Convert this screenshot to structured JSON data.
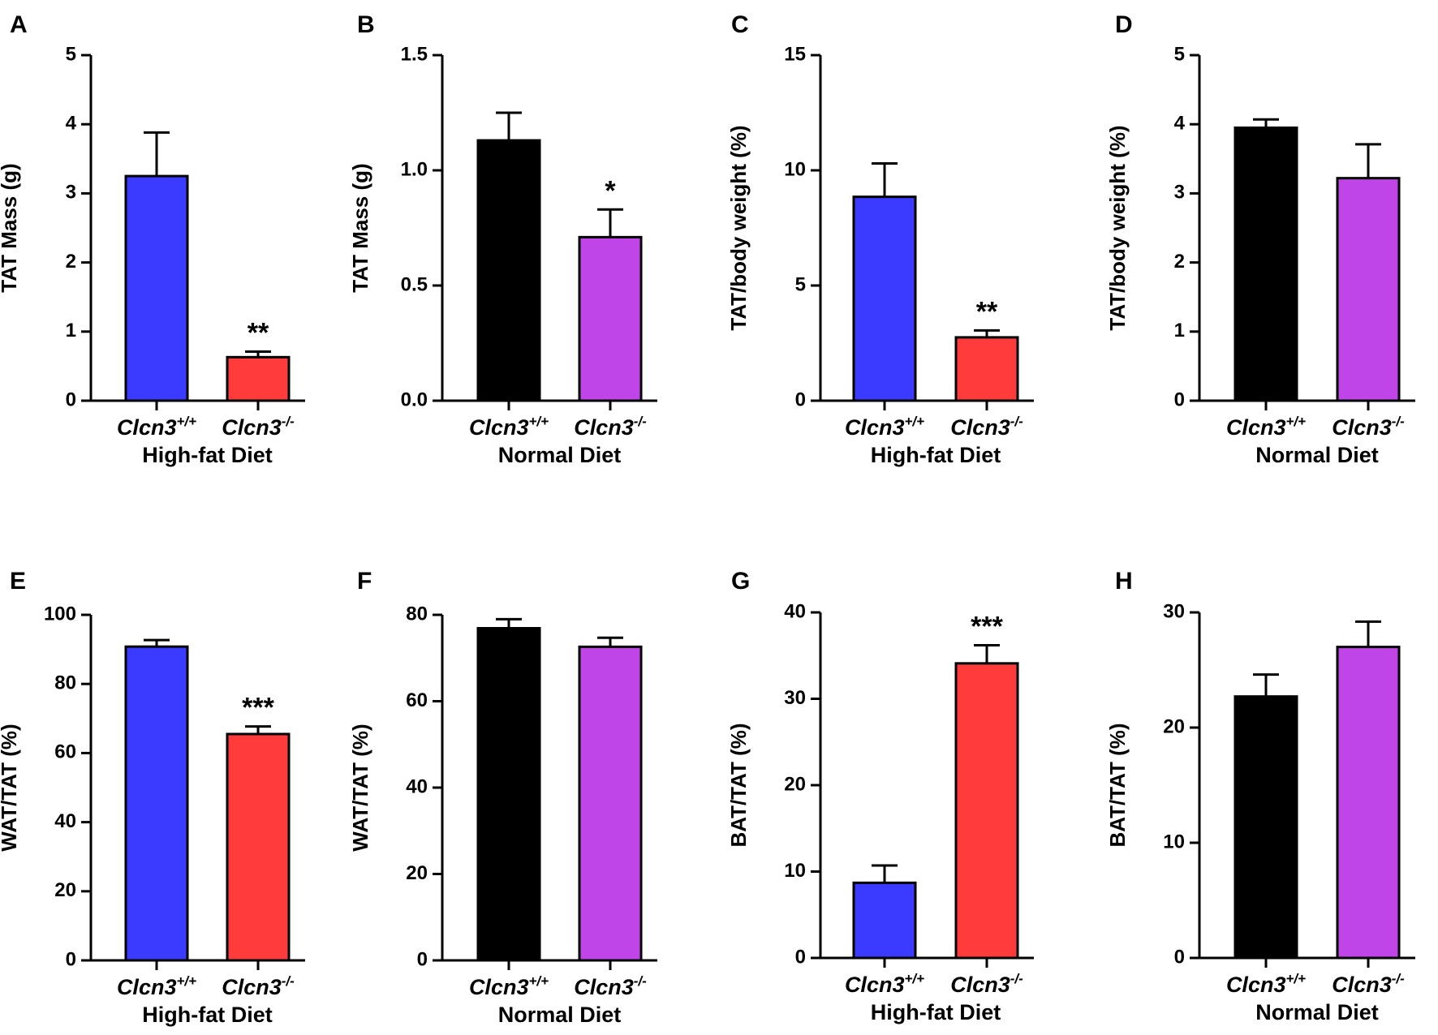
{
  "chart_data": [
    {
      "type": "bar",
      "panel": "A",
      "title": "",
      "ylabel": "TAT Mass (g)",
      "xlabel": "High-fat Diet",
      "ylim": [
        0,
        5
      ],
      "yticks": [
        0,
        1,
        2,
        3,
        4,
        5
      ],
      "ytick_labels": [
        "0",
        "1",
        "2",
        "3",
        "4",
        "5"
      ],
      "categories": [
        {
          "base": "Clcn3",
          "sup": "+/+"
        },
        {
          "base": "Clcn3",
          "sup": "-/-"
        }
      ],
      "values": [
        3.25,
        0.63
      ],
      "errors": [
        0.63,
        0.08
      ],
      "colors": [
        "#3b3bff",
        "#ff3b3b"
      ],
      "significance": [
        "",
        "**"
      ]
    },
    {
      "type": "bar",
      "panel": "B",
      "title": "",
      "ylabel": "TAT Mass (g)",
      "xlabel": "Normal Diet",
      "ylim": [
        0,
        1.5
      ],
      "yticks": [
        0,
        0.5,
        1.0,
        1.5
      ],
      "ytick_labels": [
        "0.0",
        "0.5",
        "1.0",
        "1.5"
      ],
      "categories": [
        {
          "base": "Clcn3",
          "sup": "+/+"
        },
        {
          "base": "Clcn3",
          "sup": "-/-"
        }
      ],
      "values": [
        1.13,
        0.71
      ],
      "errors": [
        0.12,
        0.12
      ],
      "colors": [
        "#000000",
        "#bf45e8"
      ],
      "significance": [
        "",
        "*"
      ]
    },
    {
      "type": "bar",
      "panel": "C",
      "title": "",
      "ylabel": "TAT/body weight (%)",
      "xlabel": "High-fat Diet",
      "ylim": [
        0,
        15
      ],
      "yticks": [
        0,
        5,
        10,
        15
      ],
      "ytick_labels": [
        "0",
        "5",
        "10",
        "15"
      ],
      "categories": [
        {
          "base": "Clcn3",
          "sup": "+/+"
        },
        {
          "base": "Clcn3",
          "sup": "-/-"
        }
      ],
      "values": [
        8.85,
        2.75
      ],
      "errors": [
        1.45,
        0.3
      ],
      "colors": [
        "#3b3bff",
        "#ff3b3b"
      ],
      "significance": [
        "",
        "**"
      ]
    },
    {
      "type": "bar",
      "panel": "D",
      "title": "",
      "ylabel": "TAT/body weight (%)",
      "xlabel": "Normal Diet",
      "ylim": [
        0,
        5
      ],
      "yticks": [
        0,
        1,
        2,
        3,
        4,
        5
      ],
      "ytick_labels": [
        "0",
        "1",
        "2",
        "3",
        "4",
        "5"
      ],
      "categories": [
        {
          "base": "Clcn3",
          "sup": "+/+"
        },
        {
          "base": "Clcn3",
          "sup": "-/-"
        }
      ],
      "values": [
        3.95,
        3.22
      ],
      "errors": [
        0.12,
        0.49
      ],
      "colors": [
        "#000000",
        "#bf45e8"
      ],
      "significance": [
        "",
        ""
      ]
    },
    {
      "type": "bar",
      "panel": "E",
      "title": "",
      "ylabel": "WAT/TAT (%)",
      "xlabel": "High-fat Diet",
      "ylim": [
        0,
        100
      ],
      "yticks": [
        0,
        20,
        40,
        60,
        80,
        100
      ],
      "ytick_labels": [
        "0",
        "20",
        "40",
        "60",
        "80",
        "100"
      ],
      "categories": [
        {
          "base": "Clcn3",
          "sup": "+/+"
        },
        {
          "base": "Clcn3",
          "sup": "-/-"
        }
      ],
      "values": [
        90.8,
        65.5
      ],
      "errors": [
        1.9,
        2.2
      ],
      "colors": [
        "#3b3bff",
        "#ff3b3b"
      ],
      "significance": [
        "",
        "***"
      ]
    },
    {
      "type": "bar",
      "panel": "F",
      "title": "",
      "ylabel": "WAT/TAT (%)",
      "xlabel": "Normal Diet",
      "ylim": [
        0,
        80
      ],
      "yticks": [
        0,
        20,
        40,
        60,
        80
      ],
      "ytick_labels": [
        "0",
        "20",
        "40",
        "60",
        "80"
      ],
      "categories": [
        {
          "base": "Clcn3",
          "sup": "+/+"
        },
        {
          "base": "Clcn3",
          "sup": "-/-"
        }
      ],
      "values": [
        76.9,
        72.6
      ],
      "errors": [
        2.1,
        2.1
      ],
      "colors": [
        "#000000",
        "#bf45e8"
      ],
      "significance": [
        "",
        ""
      ]
    },
    {
      "type": "bar",
      "panel": "G",
      "title": "",
      "ylabel": "BAT/TAT (%)",
      "xlabel": "High-fat Diet",
      "ylim": [
        0,
        40
      ],
      "yticks": [
        0,
        10,
        20,
        30,
        40
      ],
      "ytick_labels": [
        "0",
        "10",
        "20",
        "30",
        "40"
      ],
      "categories": [
        {
          "base": "Clcn3",
          "sup": "+/+"
        },
        {
          "base": "Clcn3",
          "sup": "-/-"
        }
      ],
      "values": [
        8.7,
        34.1
      ],
      "errors": [
        2.0,
        2.1
      ],
      "colors": [
        "#3b3bff",
        "#ff3b3b"
      ],
      "significance": [
        "",
        "***"
      ]
    },
    {
      "type": "bar",
      "panel": "H",
      "title": "",
      "ylabel": "BAT/TAT (%)",
      "xlabel": "Normal Diet",
      "ylim": [
        0,
        30
      ],
      "yticks": [
        0,
        10,
        20,
        30
      ],
      "ytick_labels": [
        "0",
        "10",
        "20",
        "30"
      ],
      "categories": [
        {
          "base": "Clcn3",
          "sup": "+/+"
        },
        {
          "base": "Clcn3",
          "sup": "-/-"
        }
      ],
      "values": [
        22.7,
        27.0
      ],
      "errors": [
        1.9,
        2.2
      ],
      "colors": [
        "#000000",
        "#bf45e8"
      ],
      "significance": [
        "",
        ""
      ]
    }
  ]
}
